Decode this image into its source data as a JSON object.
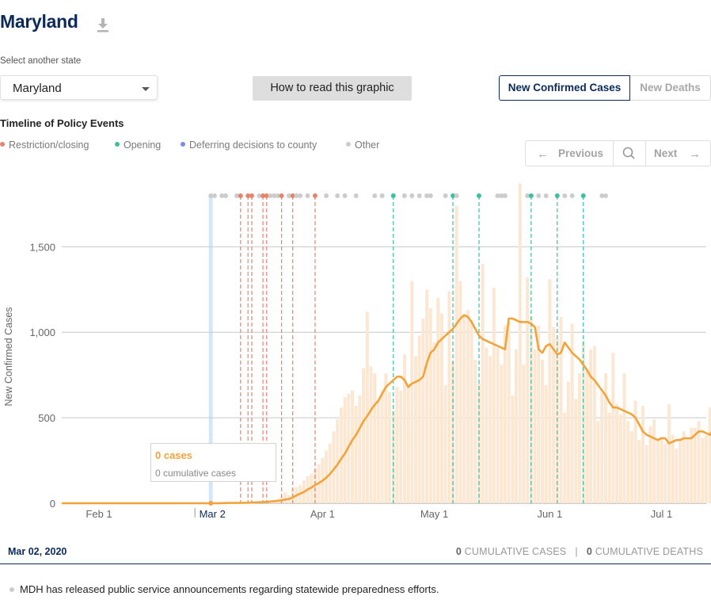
{
  "state_title": "Maryland",
  "download_icon": "download-icon",
  "select": {
    "label": "Select another state",
    "value": "Maryland"
  },
  "howto_label": "How to read this graphic",
  "toggle": {
    "cases": "New Confirmed Cases",
    "deaths": "New Deaths"
  },
  "timeline_title": "Timeline of Policy Events",
  "legend": [
    {
      "label": "Restriction/closing",
      "color": "#e8836a"
    },
    {
      "label": "Opening",
      "color": "#3dbfa2"
    },
    {
      "label": "Deferring decisions to county",
      "color": "#7c8de8"
    },
    {
      "label": "Other",
      "color": "#cccccc"
    }
  ],
  "pager": {
    "prev": "Previous",
    "next": "Next"
  },
  "tooltip": {
    "cases": "0 cases",
    "cumulative": "0 cumulative cases"
  },
  "footer": {
    "date": "Mar 02, 2020",
    "cum_cases_num": "0",
    "cum_cases_label": " CUMULATIVE CASES",
    "sep": "|",
    "cum_deaths_num": "0",
    "cum_deaths_label": " CUMULATIVE DEATHS"
  },
  "event_text": "MDH has released public service announcements regarding statewide preparedness efforts.",
  "chart_data": {
    "type": "bar",
    "ylabel": "New Confirmed Cases",
    "ylim": [
      0,
      1900
    ],
    "yticks": [
      0,
      500,
      1000,
      1500
    ],
    "ytick_labels": [
      "0",
      "500",
      "1,000",
      "1,500"
    ],
    "x_start": "2020-01-22",
    "x_end": "2020-07-13",
    "xticks": [
      {
        "date": "2020-02-01",
        "label": "Feb 1"
      },
      {
        "date": "2020-03-02",
        "label": "Mar 2",
        "selected": true
      },
      {
        "date": "2020-04-01",
        "label": "Apr 1"
      },
      {
        "date": "2020-05-01",
        "label": "May 1"
      },
      {
        "date": "2020-06-01",
        "label": "Jun 1"
      },
      {
        "date": "2020-07-01",
        "label": "Jul 1"
      }
    ],
    "selected_date": "2020-03-02",
    "colors": {
      "bars": "#fbe7d2",
      "line": "#f2a33a",
      "selected": "#d6e6f9",
      "grid": "#c8c8c8"
    },
    "series": [
      {
        "name": "New Confirmed Cases (daily)",
        "style": "bars",
        "start_date": "2020-03-05",
        "values": [
          3,
          1,
          2,
          0,
          3,
          3,
          1,
          6,
          8,
          1,
          6,
          11,
          12,
          5,
          20,
          28,
          44,
          64,
          47,
          88,
          94,
          104,
          135,
          158,
          173,
          200,
          229,
          265,
          308,
          349,
          420,
          490,
          560,
          620,
          640,
          660,
          570,
          630,
          790,
          1120,
          800,
          760,
          600,
          660,
          760,
          650,
          540,
          680,
          660,
          870,
          700,
          1300,
          860,
          980,
          1080,
          1250,
          1140,
          940,
          1200,
          1110,
          690,
          1240,
          830,
          1740,
          1300,
          1100,
          1130,
          1070,
          840,
          700,
          1400,
          910,
          860,
          1260,
          910,
          810,
          1040,
          1060,
          630,
          900,
          1870,
          810,
          1320,
          1090,
          900,
          1040,
          840,
          690,
          1310,
          1030,
          960,
          1090,
          530,
          710,
          1050,
          610,
          760,
          950,
          780,
          900,
          920,
          480,
          650,
          760,
          530,
          880,
          580,
          520,
          760,
          480,
          420,
          600,
          370,
          570,
          340,
          450,
          490,
          380,
          390,
          350,
          580,
          400,
          320,
          380,
          420,
          380,
          440,
          440,
          480,
          380,
          400,
          560,
          430,
          600
        ]
      },
      {
        "name": "7-day average",
        "style": "line",
        "start_date": "2020-03-05",
        "values": [
          1,
          1,
          2,
          2,
          2,
          2,
          3,
          3,
          4,
          5,
          6,
          7,
          8,
          10,
          12,
          14,
          17,
          22,
          25,
          34,
          46,
          56,
          66,
          80,
          92,
          106,
          118,
          132,
          150,
          172,
          198,
          226,
          260,
          290,
          330,
          370,
          400,
          440,
          480,
          510,
          545,
          575,
          600,
          640,
          680,
          700,
          720,
          740,
          740,
          720,
          680,
          700,
          710,
          720,
          740,
          820,
          880,
          900,
          940,
          960,
          980,
          1000,
          1020,
          1050,
          1080,
          1100,
          1090,
          1060,
          1020,
          980,
          960,
          950,
          940,
          930,
          920,
          910,
          900,
          1080,
          1080,
          1070,
          1060,
          1060,
          1060,
          1050,
          1030,
          900,
          880,
          920,
          930,
          900,
          870,
          880,
          940,
          910,
          880,
          860,
          840,
          810,
          780,
          740,
          720,
          690,
          660,
          630,
          590,
          560,
          560,
          550,
          540,
          530,
          520,
          500,
          460,
          420,
          400,
          390,
          380,
          370,
          380,
          380,
          350,
          360,
          370,
          370,
          380,
          380,
          380,
          400,
          420,
          420,
          410,
          400,
          440
        ]
      }
    ],
    "events": [
      {
        "date": "2020-03-02",
        "type": "Other"
      },
      {
        "date": "2020-03-03",
        "type": "Other"
      },
      {
        "date": "2020-03-05",
        "type": "Other"
      },
      {
        "date": "2020-03-06",
        "type": "Other"
      },
      {
        "date": "2020-03-09",
        "type": "Other"
      },
      {
        "date": "2020-03-10",
        "type": "Restriction/closing"
      },
      {
        "date": "2020-03-12",
        "type": "Restriction/closing"
      },
      {
        "date": "2020-03-13",
        "type": "Restriction/closing"
      },
      {
        "date": "2020-03-15",
        "type": "Other"
      },
      {
        "date": "2020-03-16",
        "type": "Restriction/closing"
      },
      {
        "date": "2020-03-17",
        "type": "Restriction/closing"
      },
      {
        "date": "2020-03-18",
        "type": "Other"
      },
      {
        "date": "2020-03-19",
        "type": "Other"
      },
      {
        "date": "2020-03-20",
        "type": "Other"
      },
      {
        "date": "2020-03-21",
        "type": "Restriction/closing"
      },
      {
        "date": "2020-03-23",
        "type": "Other"
      },
      {
        "date": "2020-03-24",
        "type": "Restriction/closing"
      },
      {
        "date": "2020-03-25",
        "type": "Other"
      },
      {
        "date": "2020-03-26",
        "type": "Other"
      },
      {
        "date": "2020-03-28",
        "type": "Other"
      },
      {
        "date": "2020-03-30",
        "type": "Restriction/closing"
      },
      {
        "date": "2020-04-02",
        "type": "Other"
      },
      {
        "date": "2020-04-05",
        "type": "Other"
      },
      {
        "date": "2020-04-07",
        "type": "Other"
      },
      {
        "date": "2020-04-10",
        "type": "Other"
      },
      {
        "date": "2020-04-15",
        "type": "Other"
      },
      {
        "date": "2020-04-17",
        "type": "Other"
      },
      {
        "date": "2020-04-20",
        "type": "Opening"
      },
      {
        "date": "2020-04-23",
        "type": "Other"
      },
      {
        "date": "2020-04-25",
        "type": "Other"
      },
      {
        "date": "2020-04-27",
        "type": "Other"
      },
      {
        "date": "2020-04-29",
        "type": "Other"
      },
      {
        "date": "2020-04-30",
        "type": "Other"
      },
      {
        "date": "2020-05-04",
        "type": "Other"
      },
      {
        "date": "2020-05-06",
        "type": "Opening"
      },
      {
        "date": "2020-05-07",
        "type": "Other"
      },
      {
        "date": "2020-05-13",
        "type": "Opening"
      },
      {
        "date": "2020-05-18",
        "type": "Other"
      },
      {
        "date": "2020-05-19",
        "type": "Other"
      },
      {
        "date": "2020-05-20",
        "type": "Other"
      },
      {
        "date": "2020-05-26",
        "type": "Other"
      },
      {
        "date": "2020-05-27",
        "type": "Opening"
      },
      {
        "date": "2020-05-29",
        "type": "Other"
      },
      {
        "date": "2020-05-31",
        "type": "Other"
      },
      {
        "date": "2020-06-03",
        "type": "Opening"
      },
      {
        "date": "2020-06-05",
        "type": "Other"
      },
      {
        "date": "2020-06-07",
        "type": "Other"
      },
      {
        "date": "2020-06-10",
        "type": "Opening"
      },
      {
        "date": "2020-06-15",
        "type": "Other"
      },
      {
        "date": "2020-06-16",
        "type": "Other"
      }
    ]
  }
}
